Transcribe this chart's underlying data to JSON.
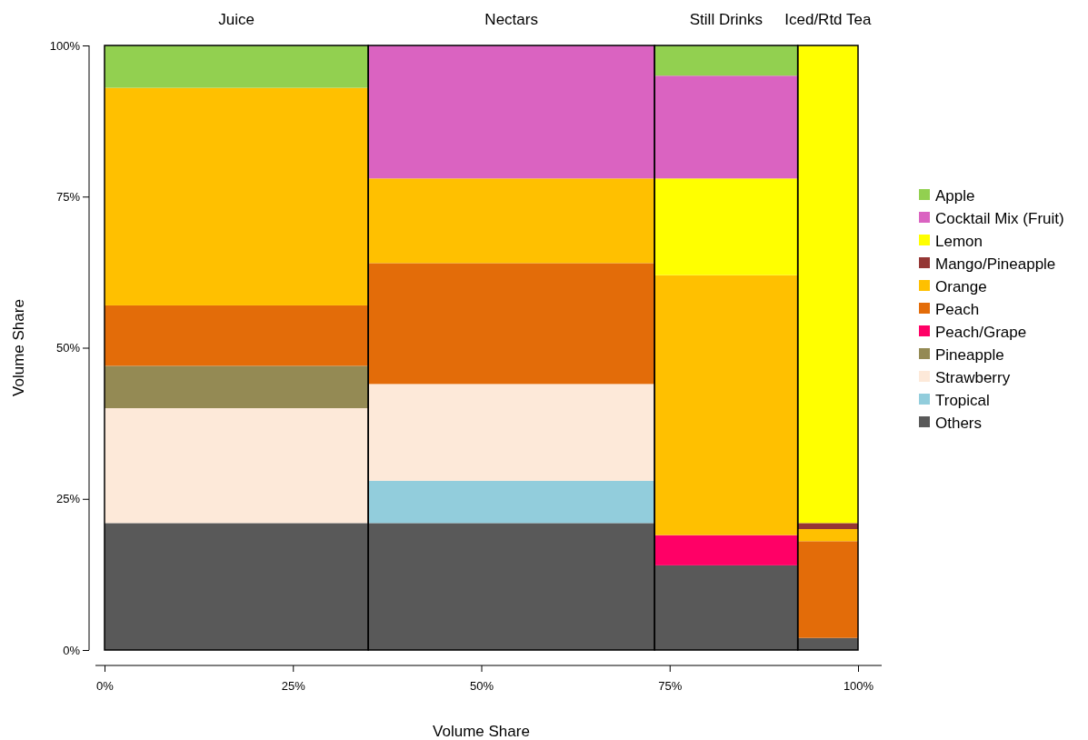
{
  "chart_data": {
    "type": "bar",
    "stacked": true,
    "xlabel": "Volume Share",
    "ylabel": "Volume Share",
    "x": [
      17.5,
      54,
      82.5,
      96
    ],
    "xlim": [
      0,
      100
    ],
    "xticks": [
      {
        "value": 0,
        "label": "0%"
      },
      {
        "value": 25,
        "label": "25%"
      },
      {
        "value": 50,
        "label": "50%"
      },
      {
        "value": 75,
        "label": "75%"
      },
      {
        "value": 100,
        "label": "100%"
      }
    ],
    "ylim": [
      0,
      100
    ],
    "yticks": [
      {
        "value": 0,
        "label": "0%"
      },
      {
        "value": 25,
        "label": "25%"
      },
      {
        "value": 50,
        "label": "50%"
      },
      {
        "value": 75,
        "label": "75%"
      },
      {
        "value": 100,
        "label": "100%"
      }
    ],
    "legend": "right",
    "grid": false,
    "annotations": [
      {
        "text": "Juice",
        "x": 17.5,
        "y": 100
      },
      {
        "text": "Nectars",
        "x": 54,
        "y": 100
      },
      {
        "text": "Still Drinks",
        "x": 82.5,
        "y": 100
      },
      {
        "text": "Iced/Rtd Tea",
        "x": 96,
        "y": 100
      }
    ],
    "series": [
      {
        "name": "Others",
        "color": "#595959",
        "values": [
          21,
          21,
          14,
          2
        ]
      },
      {
        "name": "Tropical",
        "color": "#92cddc",
        "values": [
          0,
          7,
          0,
          0
        ]
      },
      {
        "name": "Strawberry",
        "color": "#fde9d9",
        "values": [
          19,
          16,
          0,
          0
        ]
      },
      {
        "name": "Pineapple",
        "color": "#948a54",
        "values": [
          7,
          0,
          0,
          0
        ]
      },
      {
        "name": "Peach/Grape",
        "color": "#ff0066",
        "values": [
          0,
          0,
          5,
          0
        ]
      },
      {
        "name": "Peach",
        "color": "#e36c09",
        "values": [
          10,
          20,
          0,
          16
        ]
      },
      {
        "name": "Orange",
        "color": "#ffc000",
        "values": [
          36,
          14,
          43,
          2
        ]
      },
      {
        "name": "Mango/Pineapple",
        "color": "#953735",
        "values": [
          0,
          0,
          0,
          1
        ]
      },
      {
        "name": "Lemon",
        "color": "#ffff00",
        "values": [
          0,
          0,
          16,
          79
        ]
      },
      {
        "name": "Cocktail Mix (Fruit)",
        "color": "#da63c1",
        "values": [
          0,
          22,
          17,
          0
        ]
      },
      {
        "name": "Apple",
        "color": "#92d050",
        "values": [
          7,
          0,
          5,
          0
        ]
      }
    ]
  }
}
